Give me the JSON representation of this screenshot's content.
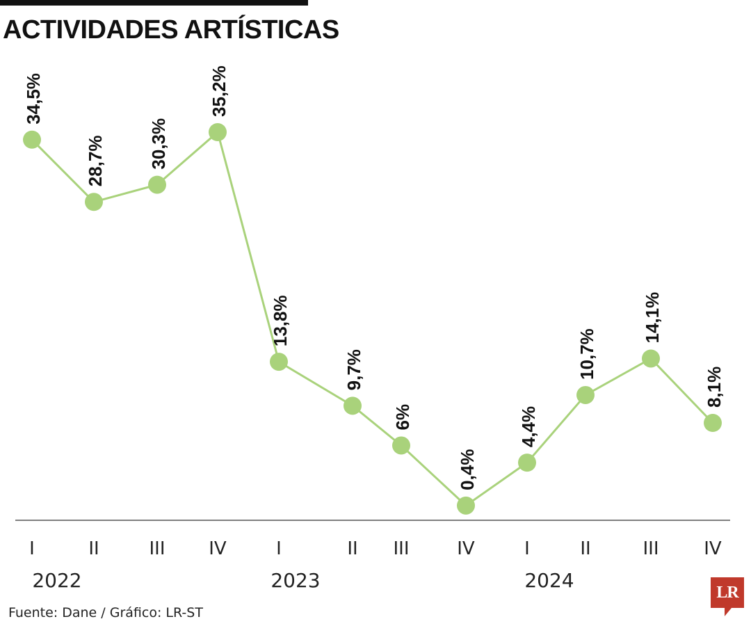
{
  "title": "ACTIVIDADES ARTÍSTICAS",
  "source": "Fuente: Dane / Gráfico: LR-ST",
  "logo_text": "LR",
  "colors": {
    "line": "#a9d27b",
    "marker": "#a9d27b",
    "axis": "#555555",
    "logo": "#c0392b"
  },
  "chart_data": {
    "type": "line",
    "title": "ACTIVIDADES ARTÍSTICAS",
    "categories": [
      "I",
      "II",
      "III",
      "IV",
      "I",
      "II",
      "III",
      "IV",
      "I",
      "II",
      "III",
      "IV"
    ],
    "years": [
      "2022",
      "2023",
      "2024"
    ],
    "values": [
      34.5,
      28.7,
      30.3,
      35.2,
      13.8,
      9.7,
      6.0,
      0.4,
      4.4,
      10.7,
      14.1,
      8.1
    ],
    "labels": [
      "34,5%",
      "28,7%",
      "30,3%",
      "35,2%",
      "13,8%",
      "9,7%",
      "6%",
      "0,4%",
      "4,4%",
      "10,7%",
      "14,1%",
      "8,1%"
    ],
    "ylim": [
      0,
      36
    ],
    "grid": false,
    "legend": "none"
  }
}
